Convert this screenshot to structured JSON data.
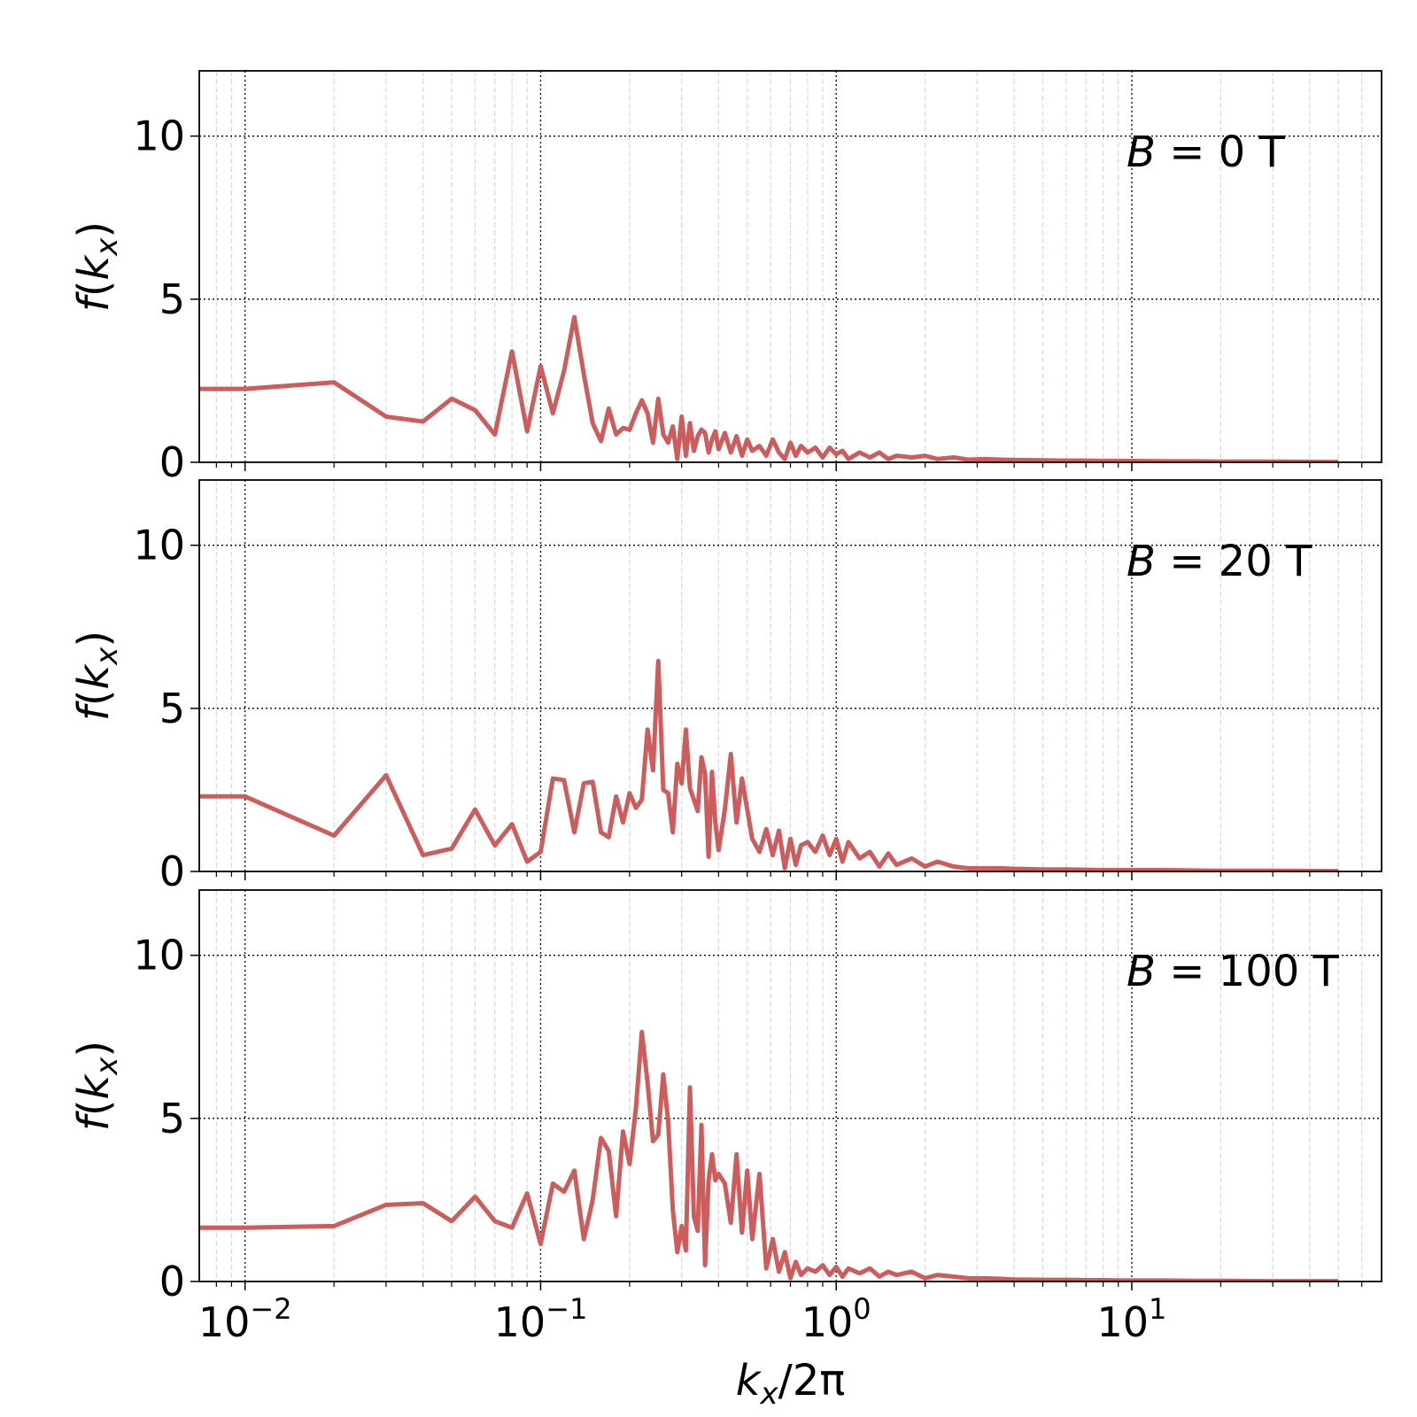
{
  "chart_data": {
    "type": "line",
    "layout": "3 vertically stacked panels sharing x axis",
    "x_scale": "log",
    "xlim": [
      0.007,
      70
    ],
    "ylim": [
      0,
      12
    ],
    "grid": {
      "major": "dotted black",
      "minor": "light gray vertical"
    },
    "line_color": "#cd5c5c",
    "xlabel": {
      "var": "k",
      "sub": "x",
      "rest": "/2π"
    },
    "ylabel": {
      "func": "f(",
      "var": "k",
      "sub": "x",
      "close": ")"
    },
    "x_ticks": [
      {
        "base": "10",
        "exp": "−2",
        "value": 0.01
      },
      {
        "base": "10",
        "exp": "−1",
        "value": 0.1
      },
      {
        "base": "10",
        "exp": "0",
        "value": 1
      },
      {
        "base": "10",
        "exp": "1",
        "value": 10
      }
    ],
    "y_ticks": [
      "0",
      "5",
      "10"
    ],
    "panels": [
      {
        "annotation": {
          "var": "B",
          "text": " = 0 T"
        },
        "x": [
          0.007,
          0.01,
          0.02,
          0.03,
          0.04,
          0.05,
          0.06,
          0.07,
          0.08,
          0.09,
          0.1,
          0.11,
          0.12,
          0.13,
          0.14,
          0.15,
          0.16,
          0.17,
          0.18,
          0.19,
          0.2,
          0.21,
          0.22,
          0.23,
          0.24,
          0.25,
          0.26,
          0.27,
          0.28,
          0.29,
          0.3,
          0.31,
          0.32,
          0.33,
          0.34,
          0.35,
          0.36,
          0.37,
          0.38,
          0.39,
          0.4,
          0.42,
          0.44,
          0.46,
          0.48,
          0.5,
          0.52,
          0.55,
          0.58,
          0.61,
          0.64,
          0.67,
          0.7,
          0.73,
          0.76,
          0.8,
          0.85,
          0.9,
          0.95,
          1.0,
          1.05,
          1.1,
          1.2,
          1.3,
          1.4,
          1.5,
          1.6,
          1.8,
          2.0,
          2.2,
          2.5,
          2.8,
          3.2,
          3.6,
          4,
          5,
          6,
          7,
          8,
          10,
          13,
          16,
          20,
          30,
          50
        ],
        "y": [
          2.25,
          2.25,
          2.45,
          1.4,
          1.25,
          1.95,
          1.6,
          0.85,
          3.4,
          0.95,
          2.95,
          1.5,
          2.8,
          4.45,
          2.7,
          1.2,
          0.65,
          1.65,
          0.85,
          1.05,
          1.0,
          1.5,
          1.9,
          1.5,
          0.6,
          1.95,
          0.85,
          0.6,
          1.1,
          0.1,
          1.4,
          0.2,
          1.2,
          0.35,
          0.8,
          1.0,
          0.9,
          0.3,
          0.7,
          0.95,
          0.4,
          0.9,
          0.3,
          0.8,
          0.2,
          0.7,
          0.35,
          0.5,
          0.2,
          0.7,
          0.3,
          0.1,
          0.6,
          0.2,
          0.5,
          0.3,
          0.45,
          0.15,
          0.45,
          0.25,
          0.35,
          0.1,
          0.3,
          0.15,
          0.3,
          0.1,
          0.2,
          0.15,
          0.2,
          0.1,
          0.15,
          0.08,
          0.1,
          0.08,
          0.07,
          0.06,
          0.05,
          0.05,
          0.04,
          0.04,
          0.03,
          0.03,
          0.02,
          0.02,
          0.01
        ]
      },
      {
        "annotation": {
          "var": "B",
          "text": " = 20 T"
        },
        "x": [
          0.007,
          0.01,
          0.02,
          0.03,
          0.04,
          0.05,
          0.06,
          0.07,
          0.08,
          0.09,
          0.1,
          0.11,
          0.12,
          0.13,
          0.14,
          0.15,
          0.16,
          0.17,
          0.18,
          0.19,
          0.2,
          0.21,
          0.22,
          0.23,
          0.24,
          0.25,
          0.26,
          0.27,
          0.28,
          0.29,
          0.3,
          0.31,
          0.32,
          0.33,
          0.34,
          0.35,
          0.36,
          0.37,
          0.38,
          0.39,
          0.4,
          0.42,
          0.44,
          0.46,
          0.48,
          0.5,
          0.52,
          0.55,
          0.58,
          0.61,
          0.64,
          0.67,
          0.7,
          0.73,
          0.76,
          0.8,
          0.85,
          0.9,
          0.95,
          1.0,
          1.05,
          1.1,
          1.2,
          1.3,
          1.4,
          1.5,
          1.6,
          1.8,
          2.0,
          2.2,
          2.5,
          2.8,
          3.2,
          3.6,
          4,
          5,
          6,
          7,
          8,
          10,
          13,
          16,
          20,
          30,
          50
        ],
        "y": [
          2.3,
          2.3,
          1.1,
          2.95,
          0.5,
          0.7,
          1.9,
          0.8,
          1.45,
          0.3,
          0.6,
          2.85,
          2.8,
          1.2,
          2.7,
          2.75,
          1.2,
          1.05,
          2.3,
          1.5,
          2.4,
          1.95,
          2.2,
          4.35,
          3.1,
          6.45,
          2.5,
          2.4,
          1.2,
          3.3,
          2.7,
          4.35,
          2.55,
          2.2,
          1.85,
          3.5,
          3.0,
          0.45,
          3.05,
          1.5,
          0.65,
          1.9,
          3.6,
          1.5,
          2.85,
          1.9,
          1.0,
          0.6,
          1.3,
          0.5,
          1.25,
          0.1,
          1.0,
          0.2,
          0.8,
          0.9,
          0.6,
          1.1,
          0.5,
          1.0,
          0.3,
          0.9,
          0.4,
          0.6,
          0.15,
          0.55,
          0.2,
          0.4,
          0.15,
          0.3,
          0.15,
          0.1,
          0.1,
          0.1,
          0.08,
          0.06,
          0.06,
          0.05,
          0.04,
          0.04,
          0.04,
          0.03,
          0.02,
          0.02,
          0.01
        ]
      },
      {
        "annotation": {
          "var": "B",
          "text": " = 100 T"
        },
        "x": [
          0.007,
          0.01,
          0.02,
          0.03,
          0.04,
          0.05,
          0.06,
          0.07,
          0.08,
          0.09,
          0.1,
          0.11,
          0.12,
          0.13,
          0.14,
          0.15,
          0.16,
          0.17,
          0.18,
          0.19,
          0.2,
          0.21,
          0.22,
          0.23,
          0.24,
          0.25,
          0.26,
          0.27,
          0.28,
          0.29,
          0.3,
          0.31,
          0.32,
          0.33,
          0.34,
          0.35,
          0.36,
          0.37,
          0.38,
          0.39,
          0.4,
          0.42,
          0.44,
          0.46,
          0.48,
          0.5,
          0.52,
          0.55,
          0.58,
          0.61,
          0.64,
          0.67,
          0.7,
          0.73,
          0.76,
          0.8,
          0.85,
          0.9,
          0.95,
          1.0,
          1.05,
          1.1,
          1.2,
          1.3,
          1.4,
          1.5,
          1.6,
          1.8,
          2.0,
          2.2,
          2.5,
          2.8,
          3.2,
          3.6,
          4,
          5,
          6,
          7,
          8,
          10,
          13,
          16,
          20,
          30,
          50
        ],
        "y": [
          1.65,
          1.65,
          1.7,
          2.35,
          2.4,
          1.85,
          2.6,
          1.85,
          1.65,
          2.7,
          1.15,
          3.0,
          2.75,
          3.4,
          1.3,
          2.5,
          4.4,
          4.0,
          2.0,
          4.6,
          3.6,
          5.3,
          7.65,
          6.1,
          4.3,
          4.5,
          6.35,
          4.9,
          2.2,
          0.9,
          1.7,
          0.95,
          5.95,
          2.0,
          1.55,
          4.8,
          0.5,
          3.1,
          3.9,
          3.1,
          3.3,
          3.0,
          1.8,
          3.9,
          1.5,
          3.4,
          1.3,
          3.3,
          0.4,
          1.3,
          0.3,
          0.9,
          0.1,
          0.6,
          0.2,
          0.4,
          0.3,
          0.5,
          0.2,
          0.45,
          0.15,
          0.4,
          0.25,
          0.4,
          0.15,
          0.3,
          0.2,
          0.3,
          0.1,
          0.2,
          0.15,
          0.1,
          0.1,
          0.08,
          0.06,
          0.05,
          0.05,
          0.04,
          0.04,
          0.03,
          0.03,
          0.02,
          0.02,
          0.01,
          0.01
        ]
      }
    ]
  }
}
